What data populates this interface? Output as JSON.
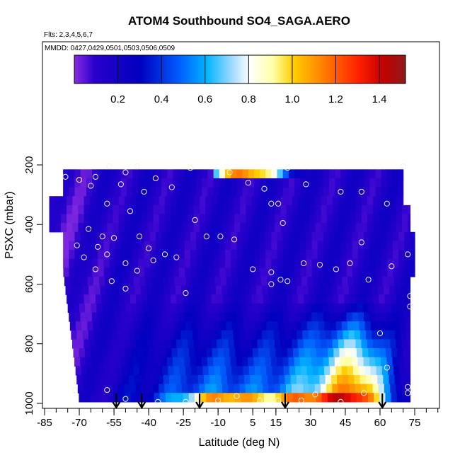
{
  "chart_data": {
    "type": "heatmap",
    "title": "ATOM4 Southbound SO4_SAGA.AERO",
    "subtitle_flights": "Flts: 2,3,4,5,6,7",
    "subtitle_dates": "MMDD: 0427,0429,0501,0503,0506,0509",
    "xlabel": "Latitude (deg N)",
    "ylabel": "PSXC (mbar)",
    "xlim": [
      -85,
      85
    ],
    "ylim": [
      1000,
      150
    ],
    "x_ticks": [
      -85,
      -70,
      -55,
      -40,
      -25,
      -10,
      5,
      15,
      30,
      45,
      60,
      75
    ],
    "y_ticks": [
      200,
      400,
      600,
      800,
      1000
    ],
    "colorbar": {
      "ticks": [
        0.2,
        0.4,
        0.6,
        0.8,
        1.0,
        1.2,
        1.4
      ],
      "range": [
        0.0,
        1.52
      ],
      "tick_labels": [
        "0.2",
        "0.4",
        "0.6",
        "0.8",
        "1.0",
        "1.2",
        "1.4"
      ]
    },
    "arrows_latitude": [
      -54,
      -43,
      -18,
      19,
      61
    ],
    "observation_points": [
      {
        "lat": -76,
        "p": 240
      },
      {
        "lat": -70,
        "p": 250
      },
      {
        "lat": -63,
        "p": 240
      },
      {
        "lat": -57,
        "p": 205
      },
      {
        "lat": -50,
        "p": 225
      },
      {
        "lat": -45,
        "p": 205
      },
      {
        "lat": -37,
        "p": 245
      },
      {
        "lat": -30,
        "p": 275
      },
      {
        "lat": -22,
        "p": 210
      },
      {
        "lat": -5,
        "p": 225
      },
      {
        "lat": 3,
        "p": 260
      },
      {
        "lat": 10,
        "p": 280
      },
      {
        "lat": 20,
        "p": 210
      },
      {
        "lat": 28,
        "p": 265
      },
      {
        "lat": 43,
        "p": 290
      },
      {
        "lat": 52,
        "p": 290
      },
      {
        "lat": 63,
        "p": 330
      },
      {
        "lat": 70,
        "p": 205
      },
      {
        "lat": -65,
        "p": 270
      },
      {
        "lat": -52,
        "p": 265
      },
      {
        "lat": -42,
        "p": 290
      },
      {
        "lat": 13,
        "p": 330
      },
      {
        "lat": 16,
        "p": 330
      },
      {
        "lat": 18,
        "p": 395
      },
      {
        "lat": -58,
        "p": 330
      },
      {
        "lat": -48,
        "p": 355
      },
      {
        "lat": -20,
        "p": 385
      },
      {
        "lat": -66,
        "p": 415
      },
      {
        "lat": -60,
        "p": 440
      },
      {
        "lat": -55,
        "p": 445
      },
      {
        "lat": -44,
        "p": 440
      },
      {
        "lat": -40,
        "p": 480
      },
      {
        "lat": -33,
        "p": 500
      },
      {
        "lat": -71,
        "p": 470
      },
      {
        "lat": -62,
        "p": 475
      },
      {
        "lat": -58,
        "p": 500
      },
      {
        "lat": -50,
        "p": 530
      },
      {
        "lat": -45,
        "p": 555
      },
      {
        "lat": -38,
        "p": 520
      },
      {
        "lat": -28,
        "p": 510
      },
      {
        "lat": -15,
        "p": 440
      },
      {
        "lat": -9,
        "p": 440
      },
      {
        "lat": -3,
        "p": 450
      },
      {
        "lat": 5,
        "p": 550
      },
      {
        "lat": 13,
        "p": 560
      },
      {
        "lat": 17,
        "p": 585
      },
      {
        "lat": 20,
        "p": 590
      },
      {
        "lat": 27,
        "p": 530
      },
      {
        "lat": 34,
        "p": 535
      },
      {
        "lat": 41,
        "p": 550
      },
      {
        "lat": 47,
        "p": 530
      },
      {
        "lat": 52,
        "p": 460
      },
      {
        "lat": 65,
        "p": 540
      },
      {
        "lat": 72,
        "p": 500
      },
      {
        "lat": -68,
        "p": 510
      },
      {
        "lat": -63,
        "p": 550
      },
      {
        "lat": -56,
        "p": 590
      },
      {
        "lat": -50,
        "p": 615
      },
      {
        "lat": -24,
        "p": 630
      },
      {
        "lat": 13,
        "p": 600
      },
      {
        "lat": 55,
        "p": 585
      },
      {
        "lat": 73,
        "p": 640
      },
      {
        "lat": 73,
        "p": 675
      },
      {
        "lat": 60,
        "p": 765
      },
      {
        "lat": 63,
        "p": 880
      },
      {
        "lat": -72,
        "p": 955
      },
      {
        "lat": -58,
        "p": 955
      },
      {
        "lat": -50,
        "p": 985
      },
      {
        "lat": -36,
        "p": 995
      },
      {
        "lat": -24,
        "p": 995
      },
      {
        "lat": -10,
        "p": 990
      },
      {
        "lat": -2,
        "p": 975
      },
      {
        "lat": 8,
        "p": 990
      },
      {
        "lat": 16,
        "p": 990
      },
      {
        "lat": 26,
        "p": 990
      },
      {
        "lat": 32,
        "p": 970
      },
      {
        "lat": 43,
        "p": 995
      },
      {
        "lat": 53,
        "p": 965
      },
      {
        "lat": 72,
        "p": 945
      },
      {
        "lat": 72,
        "p": 965
      }
    ]
  }
}
